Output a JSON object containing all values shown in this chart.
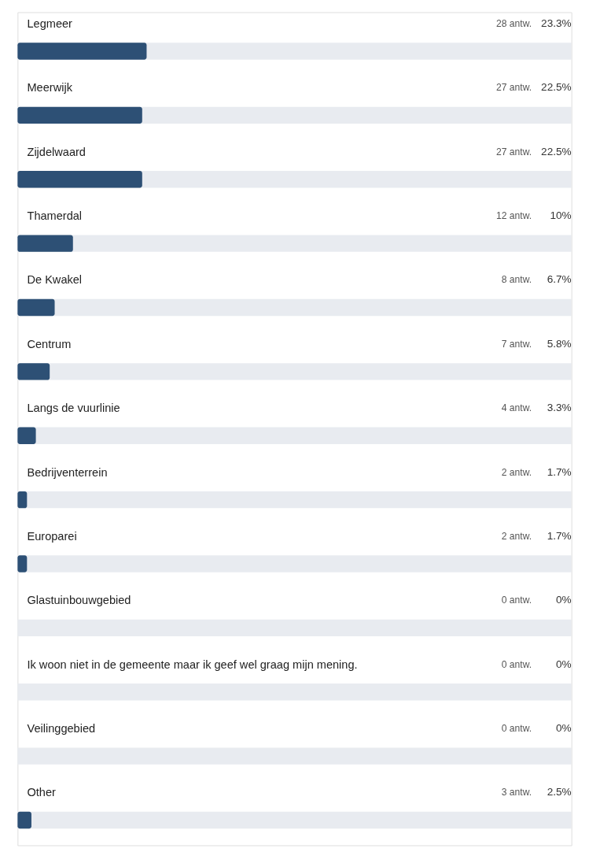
{
  "chart_data": {
    "type": "bar",
    "orientation": "horizontal",
    "categories": [
      "Legmeer",
      "Meerwijk",
      "Zijdelwaard",
      "Thamerdal",
      "De Kwakel",
      "Centrum",
      "Langs de vuurlinie",
      "Bedrijventerrein",
      "Europarei",
      "Glastuinbouwgebied",
      "Ik woon niet in de gemeente maar ik geef wel graag mijn mening.",
      "Veilinggebied",
      "Other"
    ],
    "series": [
      {
        "color": "#2d5075",
        "values": [
          23.3,
          22.5,
          22.5,
          10,
          6.7,
          5.8,
          3.3,
          1.7,
          1.7,
          0,
          0,
          0,
          2.5
        ],
        "value_labels": [
          "23.3%",
          "22.5%",
          "22.5%",
          "10%",
          "6.7%",
          "5.8%",
          "3.3%",
          "1.7%",
          "1.7%",
          "0%",
          "0%",
          "0%",
          "2.5%"
        ]
      }
    ],
    "xlim": [
      0,
      100
    ],
    "tick_labels": "y",
    "grid": false,
    "annotations": [
      "28 antw.",
      "27 antw.",
      "27 antw.",
      "12 antw.",
      "8 antw.",
      "7 antw.",
      "4 antw.",
      "2 antw.",
      "2 antw.",
      "0 antw.",
      "0 antw.",
      "0 antw.",
      "3 antw."
    ]
  }
}
